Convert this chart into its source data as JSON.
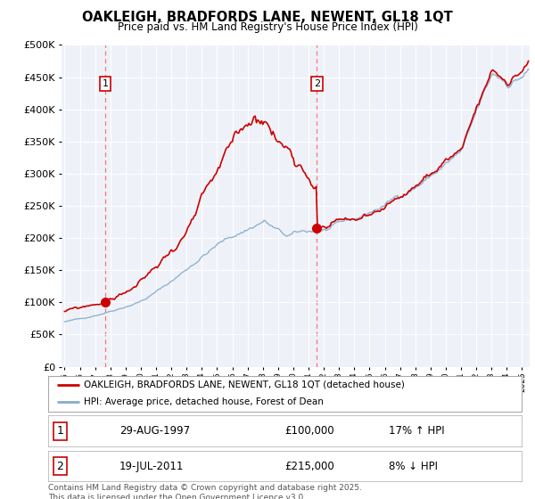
{
  "title": "OAKLEIGH, BRADFORDS LANE, NEWENT, GL18 1QT",
  "subtitle": "Price paid vs. HM Land Registry's House Price Index (HPI)",
  "legend_line1": "OAKLEIGH, BRADFORDS LANE, NEWENT, GL18 1QT (detached house)",
  "legend_line2": "HPI: Average price, detached house, Forest of Dean",
  "footer": "Contains HM Land Registry data © Crown copyright and database right 2025.\nThis data is licensed under the Open Government Licence v3.0.",
  "sale1_label": "1",
  "sale1_date": "29-AUG-1997",
  "sale1_price": "£100,000",
  "sale1_hpi": "17% ↑ HPI",
  "sale2_label": "2",
  "sale2_date": "19-JUL-2011",
  "sale2_price": "£215,000",
  "sale2_hpi": "8% ↓ HPI",
  "sale1_x": 1997.66,
  "sale1_y": 100000,
  "sale2_x": 2011.54,
  "sale2_y": 215000,
  "ylim": [
    0,
    500000
  ],
  "xlim_start": 1994.8,
  "xlim_end": 2025.5,
  "property_color": "#cc0000",
  "hpi_color": "#88aacc",
  "vline_color": "#ff6666",
  "plot_bg_color": "#eef2f8"
}
